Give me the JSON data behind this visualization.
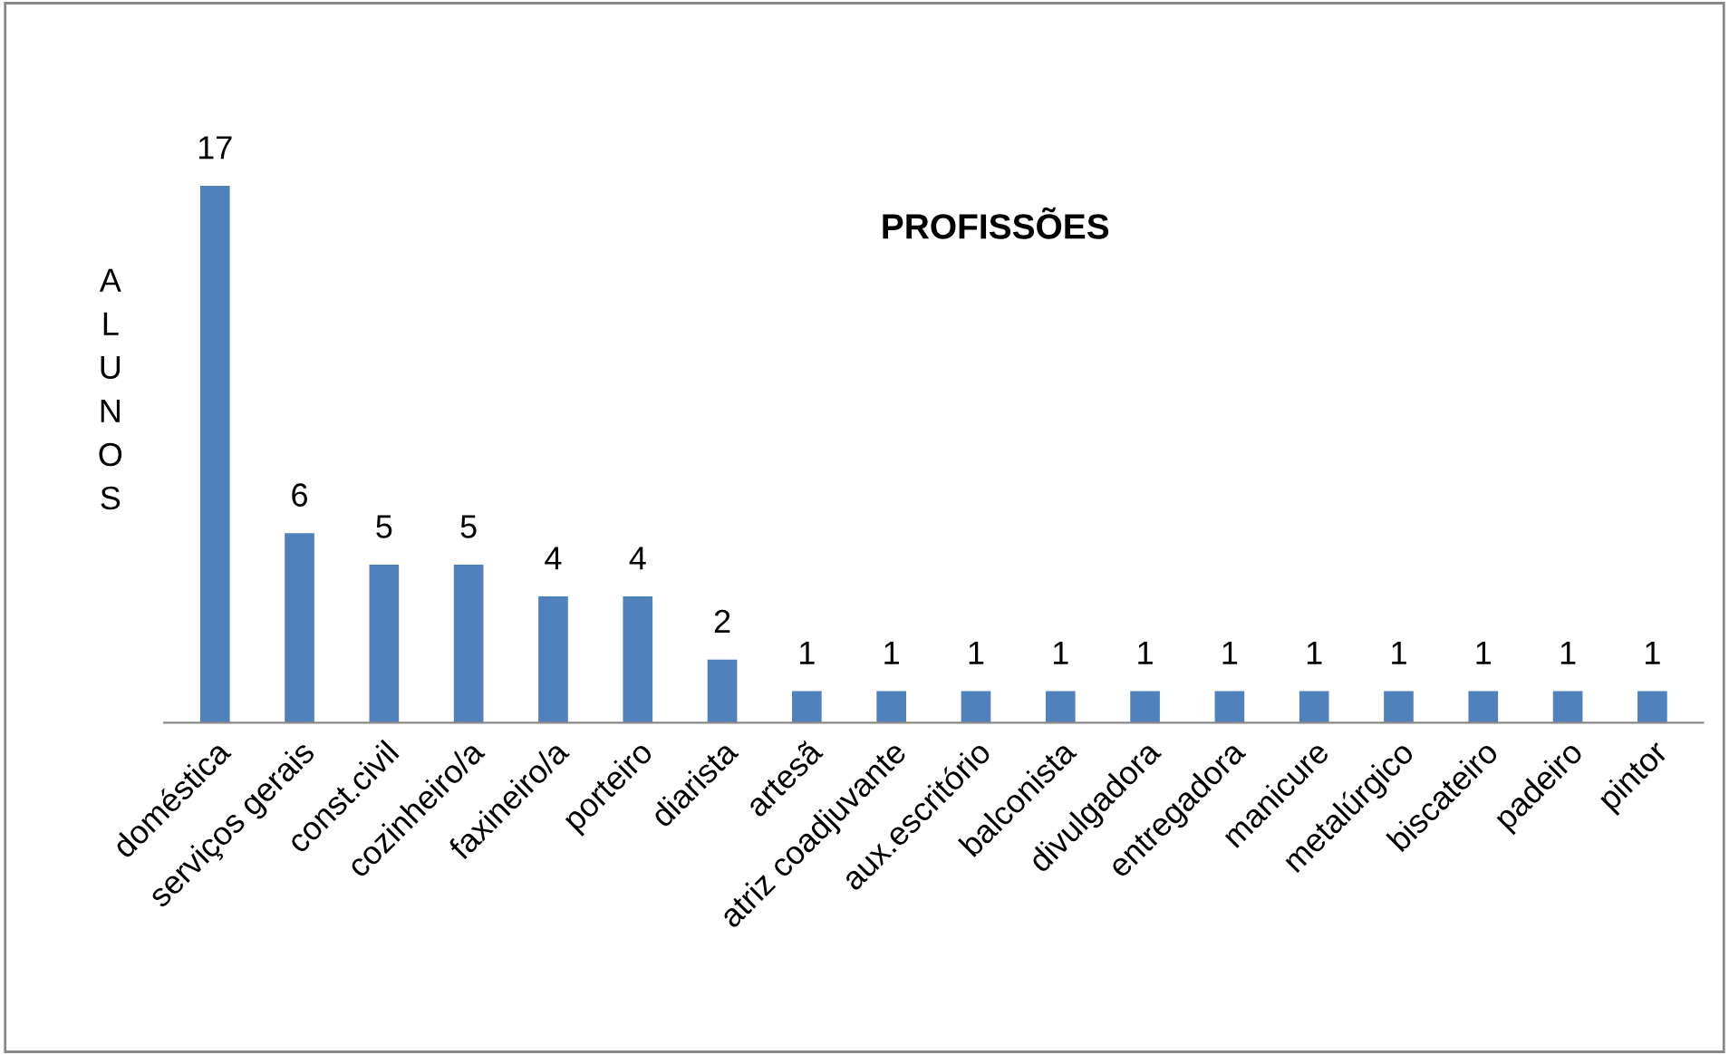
{
  "chart_data": {
    "type": "bar",
    "title": "PROFISSÕES",
    "ylabel": "ALUNOS",
    "categories": [
      "doméstica",
      "serviços gerais",
      "const.civil",
      "cozinheiro/a",
      "faxineiro/a",
      "porteiro",
      "diarista",
      "artesã",
      "atriz coadjuvante",
      "aux.escritório",
      "balconista",
      "divulgadora",
      "entregadora",
      "manicure",
      "metalúrgico",
      "biscateiro",
      "padeiro",
      "pintor"
    ],
    "values": [
      17,
      6,
      5,
      5,
      4,
      4,
      2,
      1,
      1,
      1,
      1,
      1,
      1,
      1,
      1,
      1,
      1,
      1
    ],
    "color": "#4f81bd",
    "data_labels": true,
    "tick_labels": "x"
  }
}
